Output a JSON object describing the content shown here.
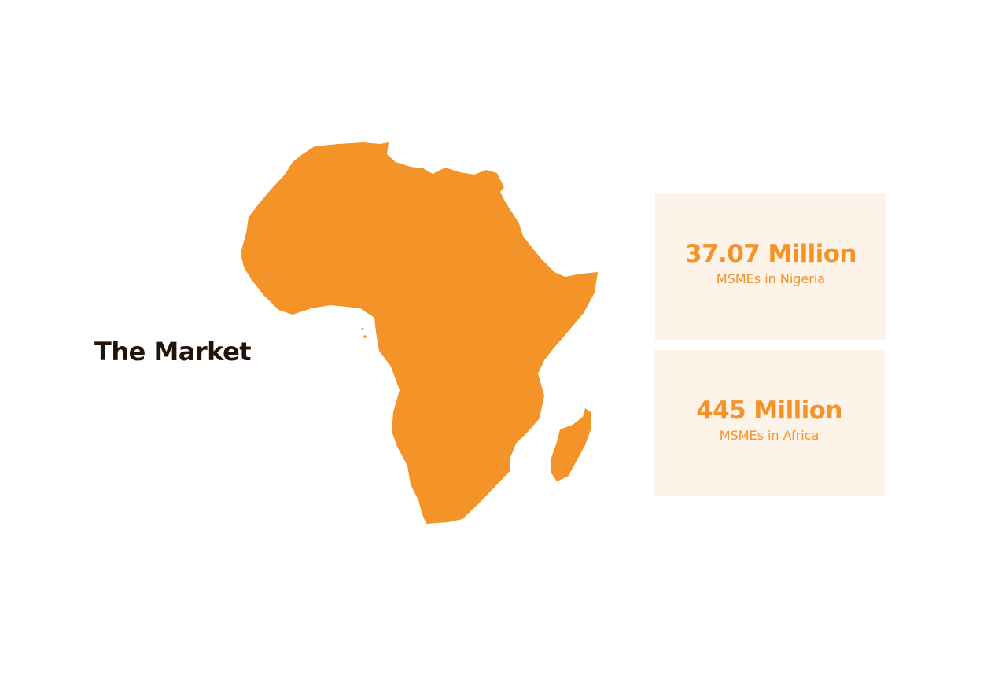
{
  "slide": {
    "title": "The Market",
    "map_icon": "africa-continent-icon",
    "accent_color": "#f39328",
    "card_background": "#fdf3e9",
    "title_color": "#21130a"
  },
  "stats": [
    {
      "value": "37.07 Million",
      "label": "MSMEs in Nigeria"
    },
    {
      "value": "445 Million",
      "label": "MSMEs in Africa"
    }
  ]
}
